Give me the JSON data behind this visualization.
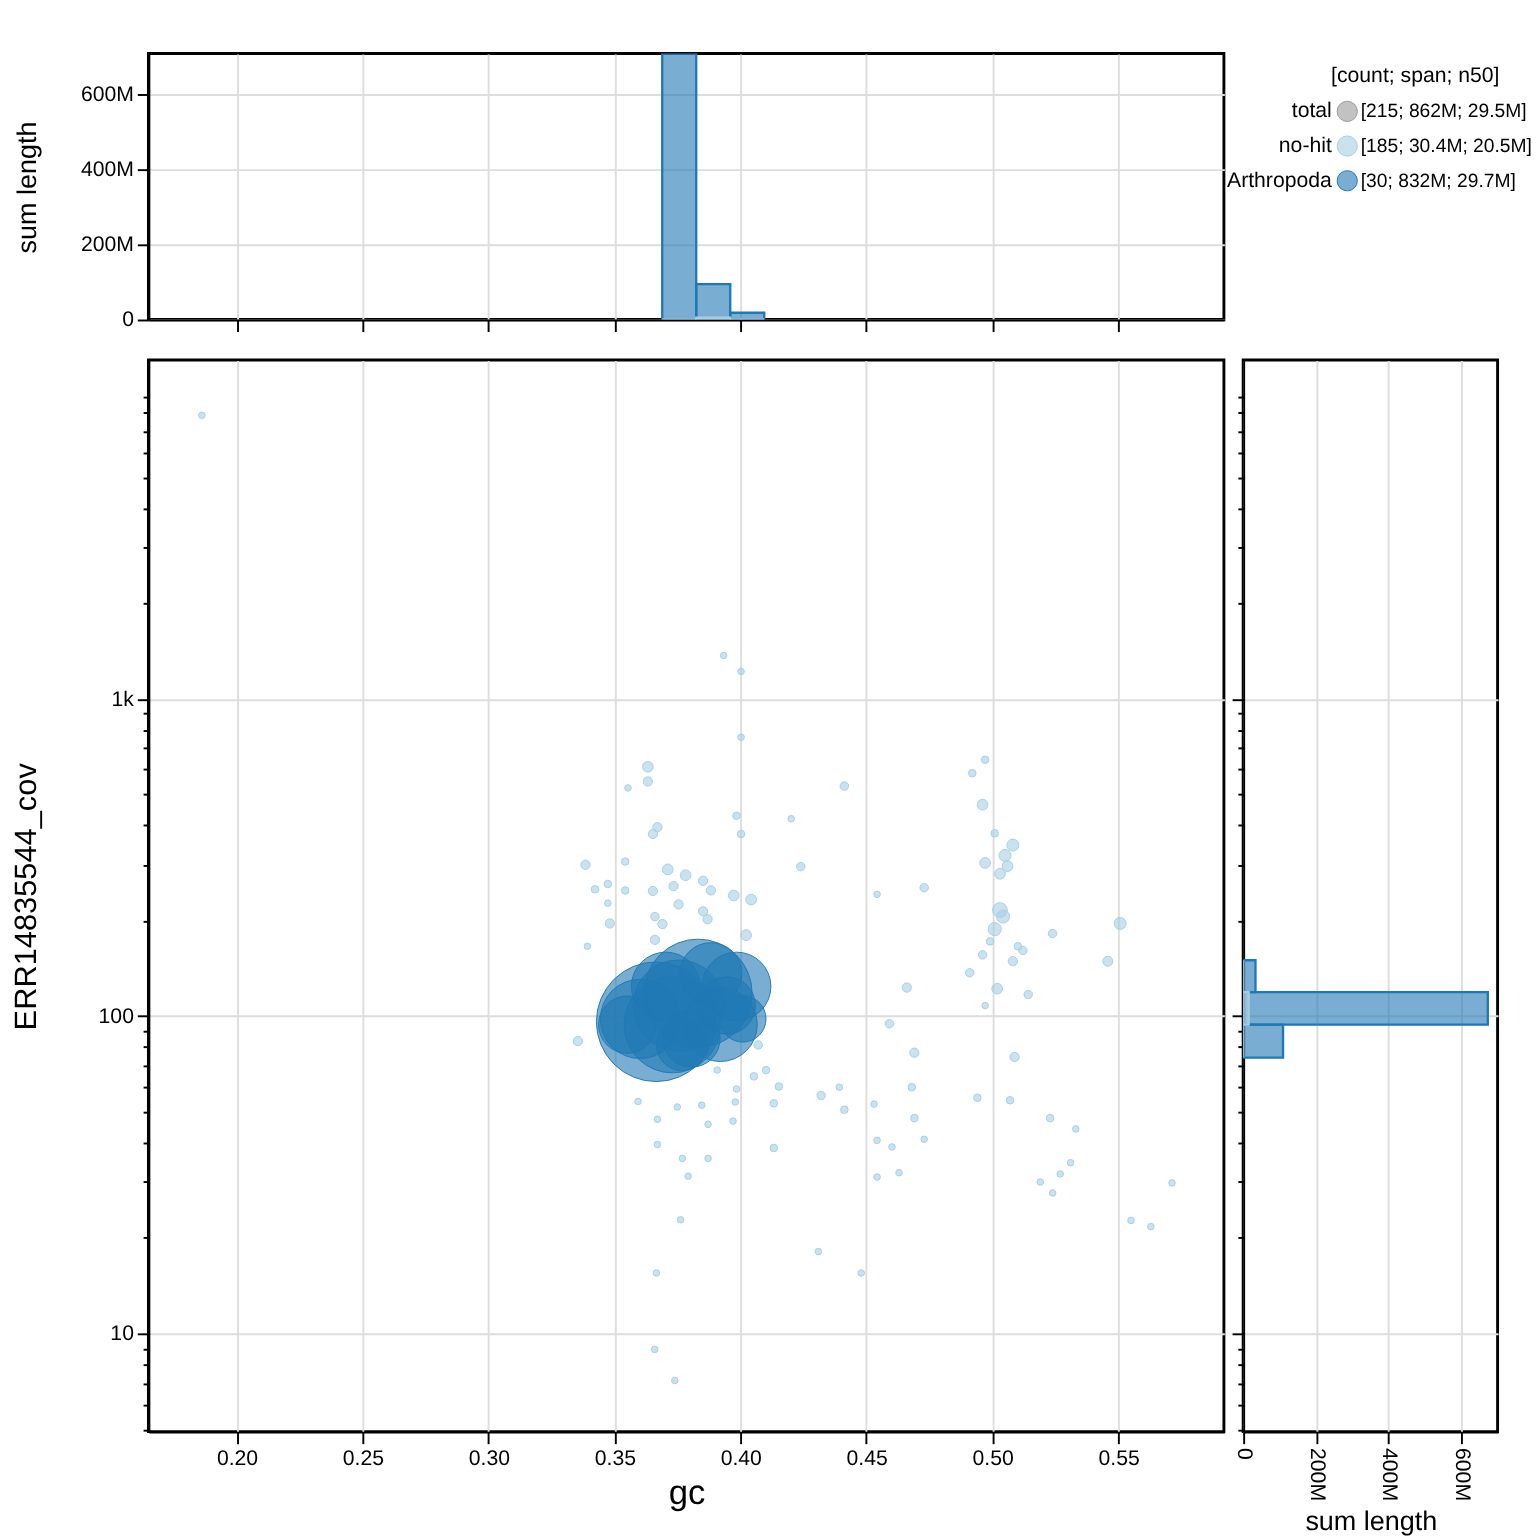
{
  "chart_data": [
    {
      "type": "histogram",
      "ylabel": "sum length",
      "bins": [
        0.369,
        0.3825,
        0.396,
        0.4095
      ],
      "xlim": [
        0.165,
        0.592
      ],
      "xticks": [
        0.2,
        0.25,
        0.3,
        0.35,
        0.4,
        0.45,
        0.5,
        0.55
      ],
      "ylim": [
        0,
        707000000
      ],
      "yticks": [
        0,
        {
          "value": 200000000,
          "label": "200M"
        },
        {
          "value": 400000000,
          "label": "400M"
        },
        {
          "value": 600000000,
          "label": "600M"
        }
      ],
      "tick_labels": "y",
      "grid": true,
      "series": [
        {
          "color": "#1f78b4",
          "values": [
            707000000,
            94000000,
            18000000
          ]
        },
        {
          "color": "#a6cee3",
          "values": [
            0,
            5000000,
            0
          ]
        }
      ]
    },
    {
      "type": "bubble",
      "xlabel": "gc",
      "ylabel": "ERR14835544_cov",
      "log": "y",
      "grid": true,
      "legend": "top right",
      "legend_title": "[count; span; n50]",
      "annotations": [
        "[215; 862M; 29.5M]",
        "[185; 30.4M; 20.5M]",
        "[30; 832M; 29.7M]"
      ],
      "xlim": [
        0.165,
        0.592
      ],
      "xticks": [
        {
          "value": 0.2,
          "label": "0.20"
        },
        0.25,
        {
          "value": 0.3,
          "label": "0.30"
        },
        0.35,
        {
          "value": 0.4,
          "label": "0.40"
        },
        0.45,
        {
          "value": 0.5,
          "label": "0.50"
        },
        0.55
      ],
      "ylim": [
        4.9,
        11700
      ],
      "yticks": [
        {
          "value": 5,
          "label": null
        },
        {
          "value": 6,
          "label": null
        },
        {
          "value": 7,
          "label": null
        },
        {
          "value": 8,
          "label": null
        },
        {
          "value": 9,
          "label": null
        },
        10,
        {
          "value": 20,
          "label": null
        },
        {
          "value": 30,
          "label": null
        },
        {
          "value": 40,
          "label": null
        },
        {
          "value": 50,
          "label": null
        },
        {
          "value": 60,
          "label": null
        },
        {
          "value": 70,
          "label": null
        },
        {
          "value": 80,
          "label": null
        },
        {
          "value": 90,
          "label": null
        },
        100,
        {
          "value": 200,
          "label": null
        },
        {
          "value": 300,
          "label": null
        },
        {
          "value": 400,
          "label": null
        },
        {
          "value": 500,
          "label": null
        },
        {
          "value": 600,
          "label": null
        },
        {
          "value": 700,
          "label": null
        },
        {
          "value": 800,
          "label": null
        },
        {
          "value": 900,
          "label": null
        },
        {
          "value": 1000,
          "label": "1k"
        },
        {
          "value": 2000,
          "label": null
        },
        {
          "value": 3000,
          "label": null
        },
        {
          "value": 4000,
          "label": null
        },
        {
          "value": 5000,
          "label": null
        },
        {
          "value": 6000,
          "label": null
        },
        {
          "value": 7000,
          "label": null
        },
        {
          "value": 8000,
          "label": null
        },
        {
          "value": 9000,
          "label": null
        }
      ],
      "series": [
        {
          "name": "total",
          "color": "#999999"
        },
        {
          "name": "no-hit",
          "color": "#a6cee3",
          "x": [
            0.1862,
            0.3934,
            0.4003,
            0.4003,
            0.3633,
            0.3633,
            0.3554,
            0.4413,
            0.4921,
            0.4972,
            0.4962,
            0.3985,
            0.4202,
            0.4003,
            0.3671,
            0.3653,
            0.501,
            0.5082,
            0.5051,
            0.5061,
            0.4972,
            0.5031,
            0.3385,
            0.3543,
            0.3712,
            0.3783,
            0.424,
            0.3852,
            0.3423,
            0.3474,
            0.3543,
            0.3653,
            0.3735,
            0.3883,
            0.3974,
            0.4043,
            0.4543,
            0.473,
            0.3755,
            0.3852,
            0.3474,
            0.3661,
            0.3691,
            0.387,
            0.3482,
            0.5031,
            0.5043,
            0.501,
            0.4023,
            0.4992,
            0.3661,
            0.3393,
            0.5102,
            0.5122,
            0.4962,
            0.524,
            0.5508,
            0.5459,
            0.5082,
            0.4911,
            0.4661,
            0.502,
            0.5143,
            0.4972,
            0.4592,
            0.3355,
            0.4071,
            0.4691,
            0.5089,
            0.4102,
            0.4054,
            0.4153,
            0.4321,
            0.4393,
            0.4681,
            0.4941,
            0.5071,
            0.4531,
            0.4133,
            0.4413,
            0.4691,
            0.523,
            0.5332,
            0.473,
            0.4543,
            0.4602,
            0.4133,
            0.5311,
            0.463,
            0.4543,
            0.527,
            0.5191,
            0.524,
            0.5551,
            0.563,
            0.377,
            0.3872,
            0.3793,
            0.3671,
            0.3763,
            0.3671,
            0.3872,
            0.3971,
            0.375,
            0.3847,
            0.398,
            0.3594,
            0.3985,
            0.3908,
            0.3667,
            0.431,
            0.448,
            0.366,
            0.374,
            0.5714
          ],
          "values": [
            7830,
            1370,
            1220,
            757,
            611,
            549,
            524,
            531,
            583,
            643,
            464,
            428,
            419,
            375,
            394,
            375,
            377,
            346,
            321,
            297,
            304,
            281,
            300,
            307,
            290,
            278,
            296,
            267,
            251,
            261,
            249,
            248,
            257,
            249,
            240,
            233,
            242,
            254,
            225,
            214,
            227,
            206,
            195,
            202,
            196,
            216,
            206,
            188,
            180,
            172,
            174,
            166,
            166,
            161,
            156,
            182,
            196,
            149,
            149,
            137,
            123,
            122,
            117,
            108,
            94.6,
            83.4,
            81.1,
            76.7,
            74.3,
            67.6,
            64.6,
            60,
            56.2,
            59.7,
            59.7,
            55.3,
            54.3,
            52.8,
            53.1,
            50.7,
            47.7,
            47.7,
            44.1,
            40.9,
            40.6,
            38.7,
            38.4,
            34.5,
            32.1,
            31.1,
            31.8,
            30,
            27.7,
            22.7,
            21.7,
            35.6,
            35.6,
            31.3,
            39.4,
            22.8,
            47.3,
            45.6,
            46.7,
            51.7,
            52.4,
            53.6,
            53.8,
            58.9,
            67.6,
            15.5,
            18.1,
            15.5,
            8.9,
            7.1,
            29.8
          ],
          "sizes": [
            0.003,
            0.003,
            0.003,
            0.003,
            0.008,
            0.006,
            0.003,
            0.005,
            0.004,
            0.004,
            0.008,
            0.004,
            0.003,
            0.004,
            0.006,
            0.006,
            0.004,
            0.01,
            0.01,
            0.008,
            0.008,
            0.008,
            0.006,
            0.004,
            0.008,
            0.008,
            0.005,
            0.006,
            0.004,
            0.004,
            0.004,
            0.006,
            0.006,
            0.006,
            0.008,
            0.008,
            0.003,
            0.005,
            0.006,
            0.006,
            0.003,
            0.005,
            0.006,
            0.006,
            0.006,
            0.015,
            0.012,
            0.012,
            0.008,
            0.004,
            0.006,
            0.003,
            0.004,
            0.005,
            0.005,
            0.005,
            0.01,
            0.007,
            0.006,
            0.005,
            0.006,
            0.008,
            0.005,
            0.003,
            0.005,
            0.006,
            0.005,
            0.006,
            0.006,
            0.004,
            0.004,
            0.004,
            0.005,
            0.003,
            0.004,
            0.004,
            0.004,
            0.003,
            0.004,
            0.004,
            0.004,
            0.004,
            0.003,
            0.003,
            0.003,
            0.003,
            0.004,
            0.003,
            0.003,
            0.003,
            0.003,
            0.003,
            0.003,
            0.003,
            0.003,
            0.003,
            0.003,
            0.003,
            0.003,
            0.003,
            0.003,
            0.003,
            0.003,
            0.003,
            0.003,
            0.003,
            0.003,
            0.003,
            0.003,
            0.003,
            0.003,
            0.003,
            0.003,
            0.003,
            0.003
          ]
        },
        {
          "name": "Arthropoda",
          "color": "#1f78b4",
          "x": [
            0.3666,
            0.3832,
            0.3985,
            0.3921,
            0.3755,
            0.3602,
            0.373,
            0.3883,
            0.3704,
            0.401,
            0.3806,
            0.3551,
            0.3946,
            0.3768
          ],
          "values": [
            96,
            118,
            124,
            94,
            108,
            98,
            94,
            136,
            124,
            98,
            85,
            94,
            108,
            81
          ],
          "sizes": [
            1,
            0.82,
            0.33,
            0.38,
            0.58,
            0.44,
            0.65,
            0.27,
            0.33,
            0.15,
            0.23,
            0.23,
            0.23,
            0.18
          ]
        }
      ]
    },
    {
      "type": "histogram",
      "orientation": "horizontal",
      "xlabel": "sum length",
      "log": "y",
      "bins": [
        74,
        94,
        119,
        150
      ],
      "ylim": [
        4.9,
        11700
      ],
      "yticks": [
        {
          "value": 5,
          "label": null
        },
        {
          "value": 6,
          "label": null
        },
        {
          "value": 7,
          "label": null
        },
        {
          "value": 8,
          "label": null
        },
        {
          "value": 9,
          "label": null
        },
        10,
        {
          "value": 20,
          "label": null
        },
        {
          "value": 30,
          "label": null
        },
        {
          "value": 40,
          "label": null
        },
        {
          "value": 50,
          "label": null
        },
        {
          "value": 60,
          "label": null
        },
        {
          "value": 70,
          "label": null
        },
        {
          "value": 80,
          "label": null
        },
        {
          "value": 90,
          "label": null
        },
        100,
        {
          "value": 200,
          "label": null
        },
        {
          "value": 300,
          "label": null
        },
        {
          "value": 400,
          "label": null
        },
        {
          "value": 500,
          "label": null
        },
        {
          "value": 600,
          "label": null
        },
        {
          "value": 700,
          "label": null
        },
        {
          "value": 800,
          "label": null
        },
        {
          "value": 900,
          "label": null
        },
        1000,
        {
          "value": 2000,
          "label": null
        },
        {
          "value": 3000,
          "label": null
        },
        {
          "value": 4000,
          "label": null
        },
        {
          "value": 5000,
          "label": null
        },
        {
          "value": 6000,
          "label": null
        },
        {
          "value": 7000,
          "label": null
        },
        {
          "value": 8000,
          "label": null
        },
        {
          "value": 9000,
          "label": null
        }
      ],
      "xlim": [
        0,
        702000000
      ],
      "xticks": [
        0,
        {
          "value": 200000000,
          "label": "200M"
        },
        {
          "value": 400000000,
          "label": "400M"
        },
        {
          "value": 600000000,
          "label": "600M"
        }
      ],
      "tick_labels": "x",
      "grid": true,
      "series": [
        {
          "color": "#1f78b4",
          "values": [
            110000000,
            675000000,
            34000000
          ]
        },
        {
          "color": "#a6cee3",
          "values": [
            0,
            15000000,
            0
          ]
        }
      ]
    }
  ]
}
